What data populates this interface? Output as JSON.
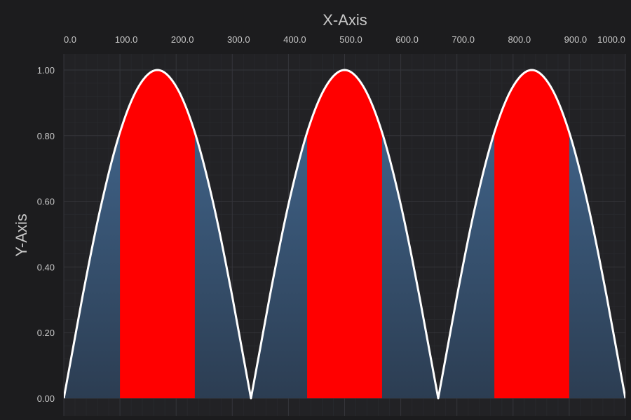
{
  "chart_data": {
    "type": "area",
    "xlabel": "X-Axis",
    "ylabel": "Y-Axis",
    "xlim": [
      0,
      1000
    ],
    "ylim": [
      0,
      1
    ],
    "x_ticks": [
      "0.0",
      "100.0",
      "200.0",
      "300.0",
      "400.0",
      "500.0",
      "600.0",
      "700.0",
      "800.0",
      "900.0",
      "1000.0"
    ],
    "y_ticks": [
      "0.00",
      "0.20",
      "0.40",
      "0.60",
      "0.80",
      "1.00"
    ],
    "x_axis_position": "top",
    "grid": true,
    "threshold": 0.8,
    "series": [
      {
        "x": [
          0,
          33.3,
          66.7,
          100,
          133.3,
          166.7,
          200,
          233.3,
          266.7,
          300,
          333.3,
          366.7,
          400,
          433.3,
          466.7,
          500,
          533.3,
          566.7,
          600,
          633.3,
          666.7,
          700,
          733.3,
          766.7,
          800,
          833.3,
          866.7,
          900,
          933.3,
          966.7,
          1000
        ],
        "values": [
          0,
          0.31,
          0.59,
          0.81,
          0.95,
          1.0,
          0.95,
          0.81,
          0.59,
          0.31,
          0,
          0.31,
          0.59,
          0.81,
          0.95,
          1.0,
          0.95,
          0.81,
          0.59,
          0.31,
          0,
          0.31,
          0.59,
          0.81,
          0.95,
          1.0,
          0.95,
          0.81,
          0.59,
          0.31,
          0
        ]
      }
    ],
    "colors": {
      "background": "#1c1c1e",
      "plot_background": "#222225",
      "line": "#ffffff",
      "fill_top": "#436a93",
      "fill_bottom": "#2c3d52",
      "threshold_fill": "#ff0000",
      "text": "#c8c8c8",
      "title_text": "#c8c8c8"
    }
  }
}
